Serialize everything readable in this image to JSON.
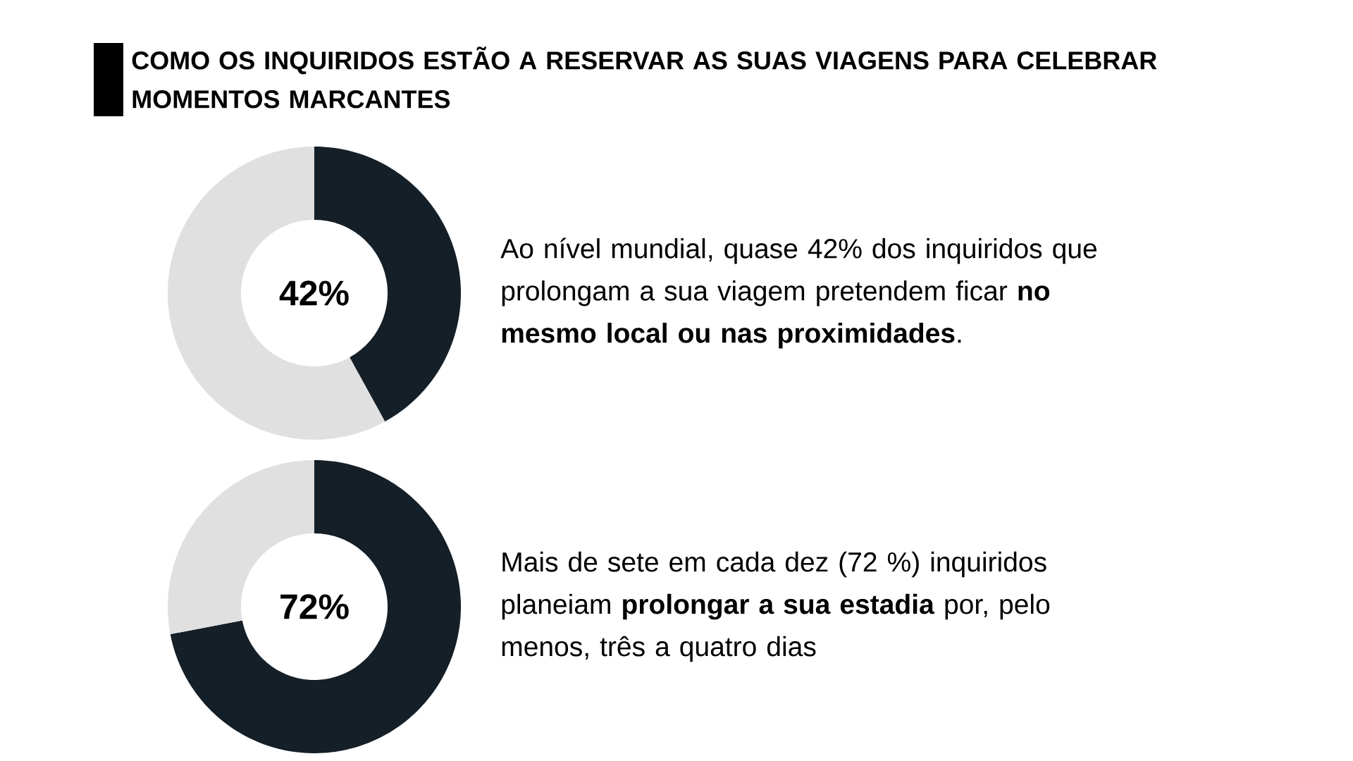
{
  "chart_data": [
    {
      "type": "donut",
      "title": "COMO OS INQUIRIDOS ESTÃO A RESERVAR AS SUAS VIAGENS PARA CELEBRAR MOMENTOS MARCANTES",
      "categories": [
        null,
        null
      ],
      "values": [
        42,
        58
      ],
      "colors": [
        "#141f28",
        "#e0e0e0"
      ],
      "annotations": [
        "42%",
        "Ao nível mundial, quase 42% dos inquiridos que prolongam a sua viagem pretendem ficar **no mesmo local ou nas proximidades**."
      ]
    },
    {
      "type": "donut",
      "categories": [
        null,
        null
      ],
      "values": [
        72,
        28
      ],
      "colors": [
        "#141f28",
        "#e0e0e0"
      ],
      "annotations": [
        "72%",
        "Mais de sete em cada dez (72 %) inquiridos planeiam **prolongar a sua estadia** por, pelo menos, três a quatro dias"
      ]
    }
  ]
}
